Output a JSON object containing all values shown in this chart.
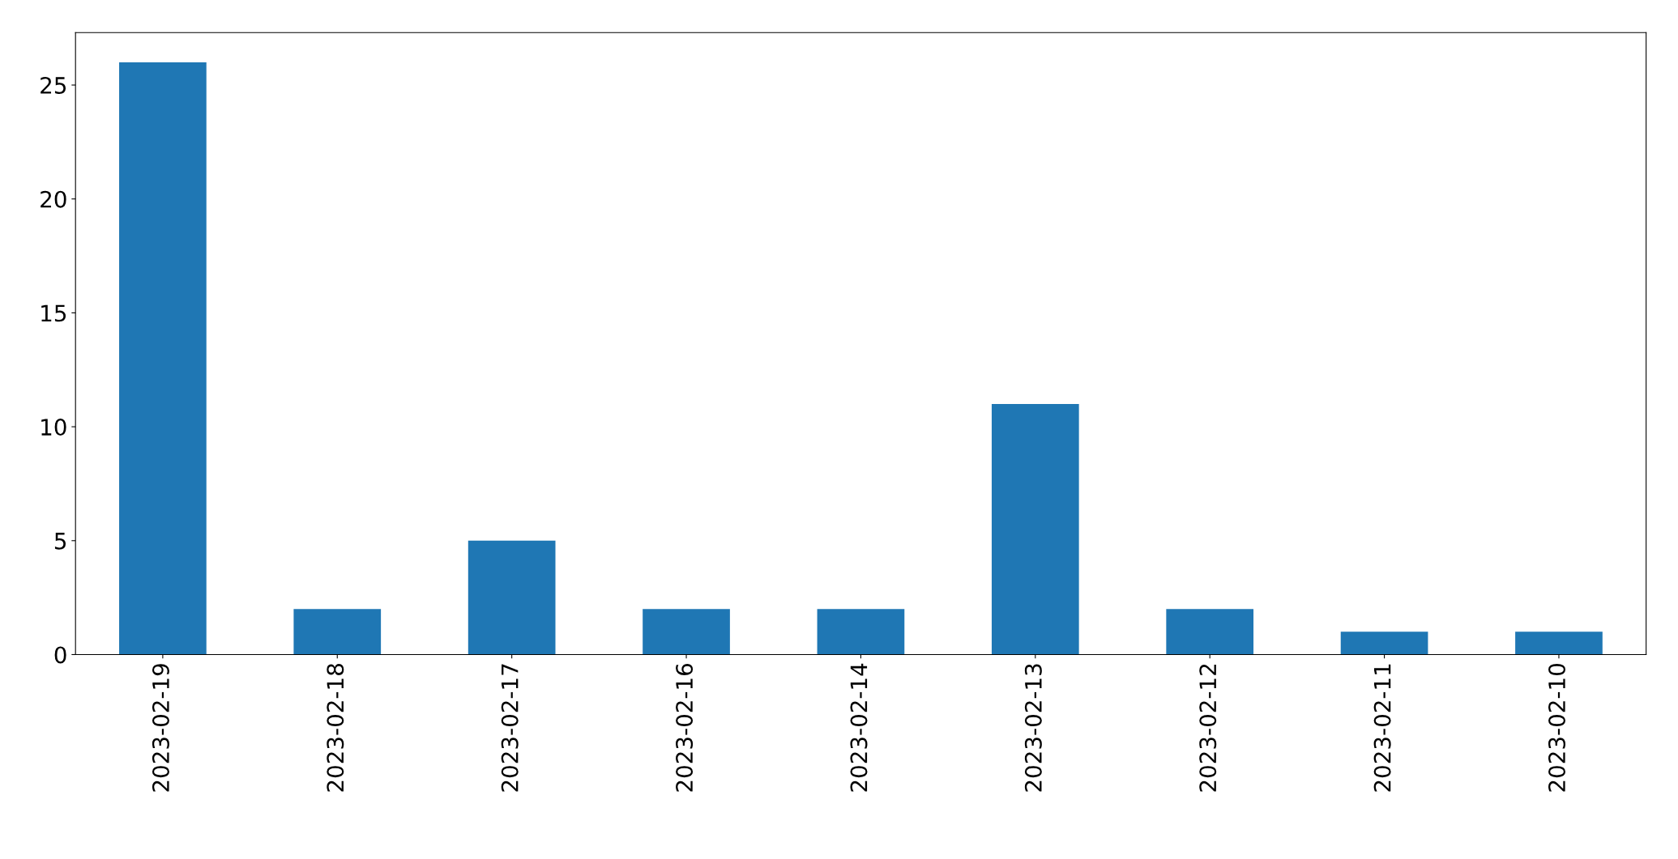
{
  "chart_data": {
    "type": "bar",
    "categories": [
      "2023-02-19",
      "2023-02-18",
      "2023-02-17",
      "2023-02-16",
      "2023-02-14",
      "2023-02-13",
      "2023-02-12",
      "2023-02-11",
      "2023-02-10"
    ],
    "values": [
      26,
      2,
      5,
      2,
      2,
      11,
      2,
      1,
      1
    ],
    "color": "#1f77b4",
    "ylim": [
      0,
      27.3
    ],
    "yticks": [
      0,
      5,
      10,
      15,
      20,
      25
    ],
    "grid": false,
    "legend": false
  }
}
